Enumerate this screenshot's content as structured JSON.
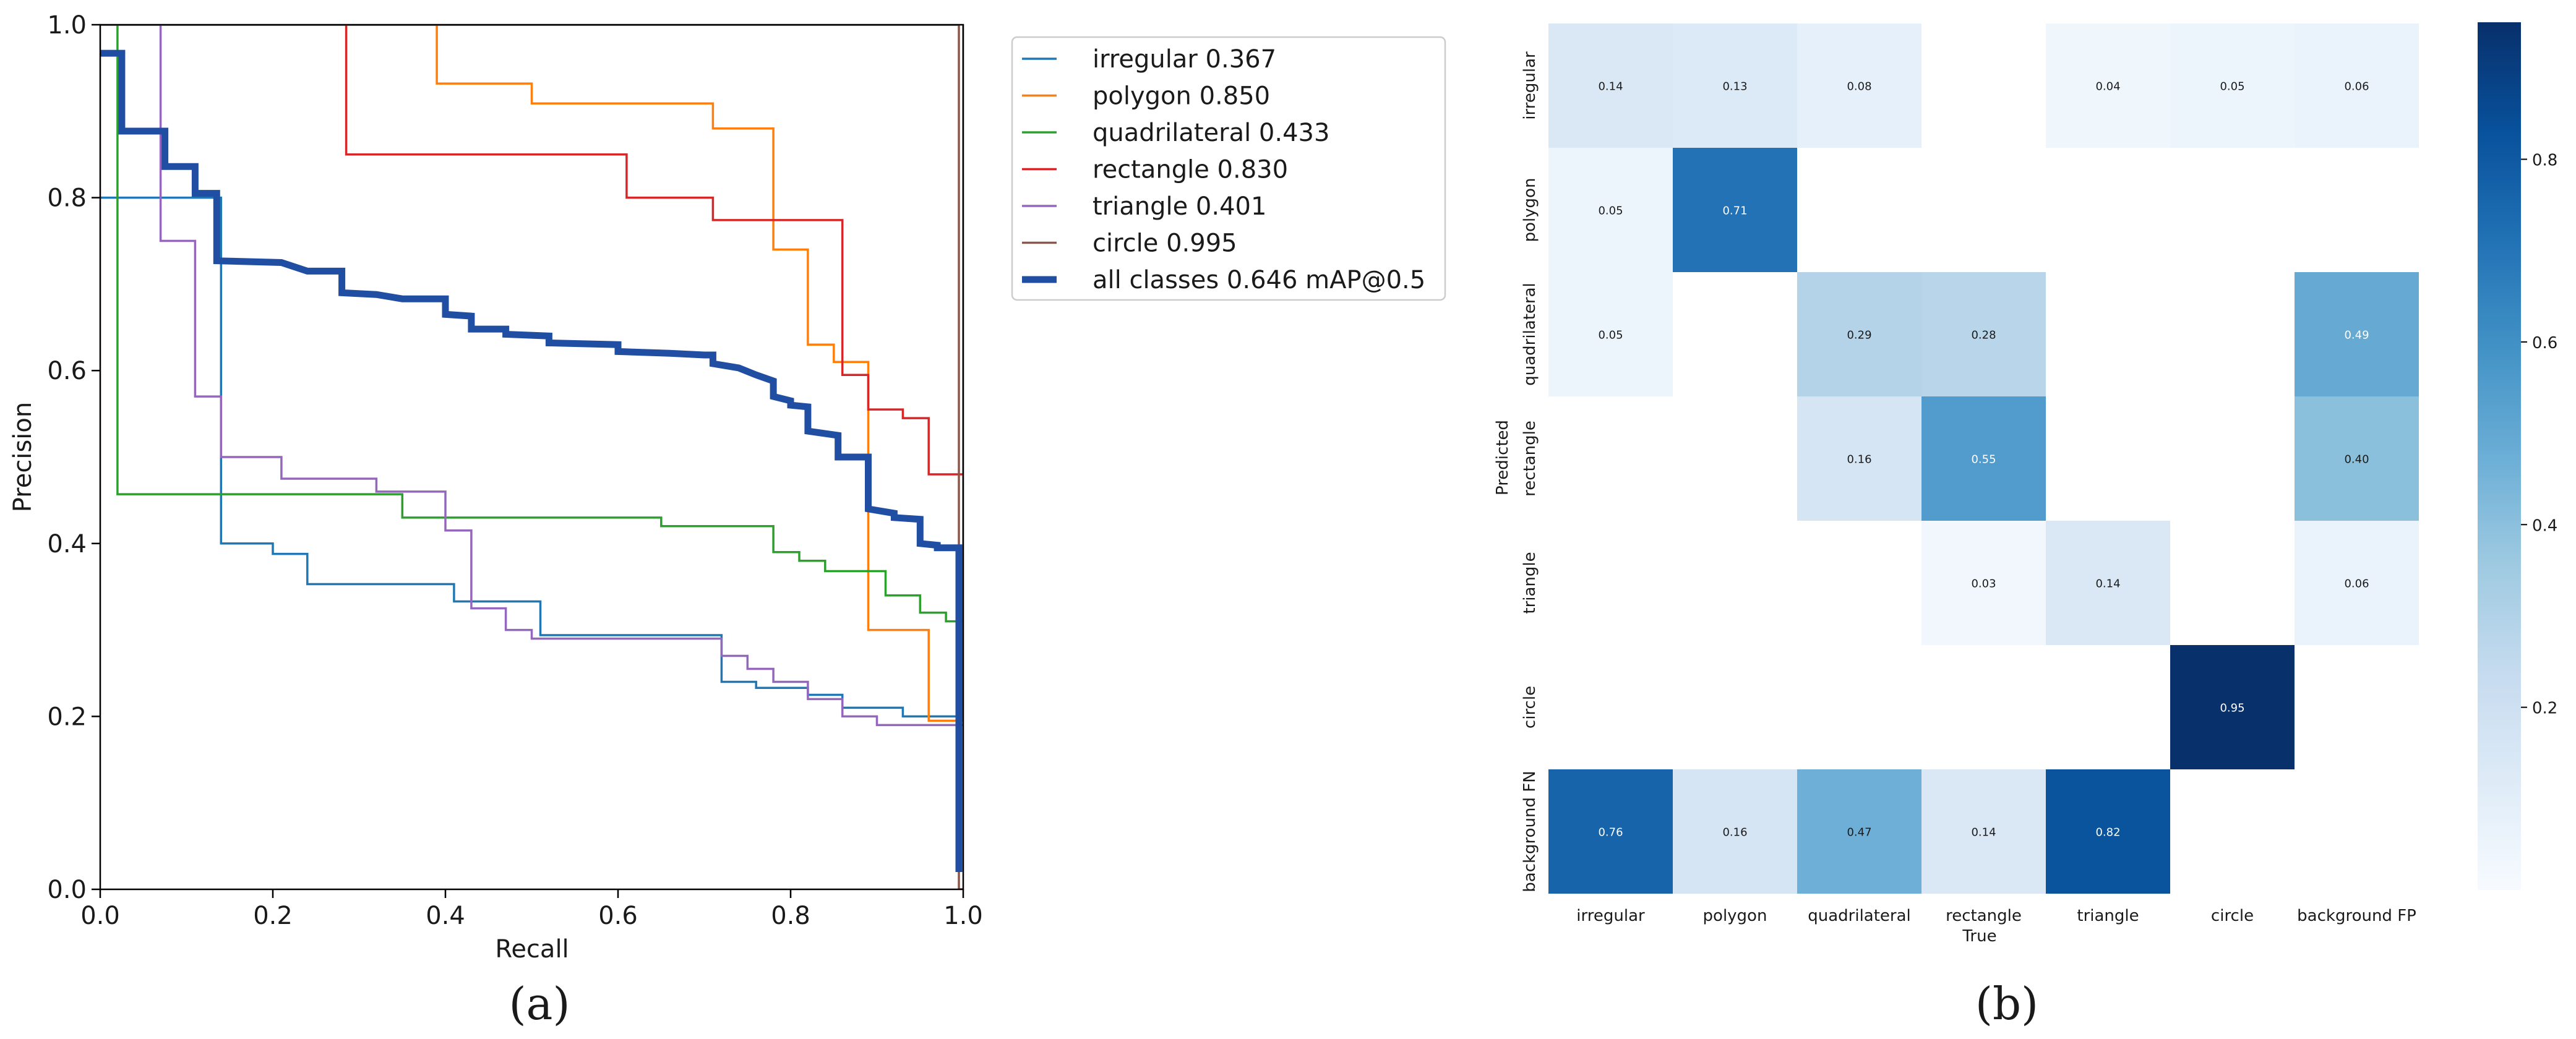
{
  "chart_data": [
    {
      "panel": "(a)",
      "type": "line",
      "xlabel": "Recall",
      "ylabel": "Precision",
      "xlim": [
        0,
        1
      ],
      "ylim": [
        0,
        1
      ],
      "xticks": [
        0.0,
        0.2,
        0.4,
        0.6,
        0.8,
        1.0
      ],
      "yticks": [
        0.0,
        0.2,
        0.4,
        0.6,
        0.8,
        1.0
      ],
      "tick_labels_x": [
        "0.0",
        "0.2",
        "0.4",
        "0.6",
        "0.8",
        "1.0"
      ],
      "tick_labels_y": [
        "0.0",
        "0.2",
        "0.4",
        "0.6",
        "0.8",
        "1.0"
      ],
      "legend_position": "outside-right",
      "series": [
        {
          "name": "irregular 0.367",
          "color": "#1f77b4",
          "width": "thin",
          "points": [
            [
              0,
              0.8
            ],
            [
              0.14,
              0.8
            ],
            [
              0.14,
              0.4
            ],
            [
              0.2,
              0.4
            ],
            [
              0.2,
              0.388
            ],
            [
              0.24,
              0.388
            ],
            [
              0.24,
              0.353
            ],
            [
              0.41,
              0.353
            ],
            [
              0.41,
              0.333
            ],
            [
              0.51,
              0.333
            ],
            [
              0.51,
              0.294
            ],
            [
              0.72,
              0.294
            ],
            [
              0.72,
              0.24
            ],
            [
              0.76,
              0.24
            ],
            [
              0.76,
              0.233
            ],
            [
              0.82,
              0.233
            ],
            [
              0.82,
              0.225
            ],
            [
              0.86,
              0.225
            ],
            [
              0.86,
              0.21
            ],
            [
              0.93,
              0.21
            ],
            [
              0.93,
              0.2
            ],
            [
              1.0,
              0.2
            ]
          ]
        },
        {
          "name": "polygon 0.850",
          "color": "#ff7f0e",
          "width": "thin",
          "points": [
            [
              0.39,
              1.0
            ],
            [
              0.39,
              0.932
            ],
            [
              0.5,
              0.932
            ],
            [
              0.5,
              0.909
            ],
            [
              0.71,
              0.909
            ],
            [
              0.71,
              0.88
            ],
            [
              0.78,
              0.88
            ],
            [
              0.78,
              0.74
            ],
            [
              0.82,
              0.74
            ],
            [
              0.82,
              0.63
            ],
            [
              0.85,
              0.63
            ],
            [
              0.85,
              0.61
            ],
            [
              0.89,
              0.61
            ],
            [
              0.89,
              0.3
            ],
            [
              0.96,
              0.3
            ],
            [
              0.96,
              0.195
            ],
            [
              1.0,
              0.195
            ],
            [
              1.0,
              1.0
            ]
          ]
        },
        {
          "name": "quadrilateral 0.433",
          "color": "#2ca02c",
          "width": "thin",
          "points": [
            [
              0.02,
              1.0
            ],
            [
              0.02,
              0.457
            ],
            [
              0.35,
              0.457
            ],
            [
              0.35,
              0.43
            ],
            [
              0.65,
              0.43
            ],
            [
              0.65,
              0.42
            ],
            [
              0.78,
              0.42
            ],
            [
              0.78,
              0.39
            ],
            [
              0.81,
              0.39
            ],
            [
              0.81,
              0.38
            ],
            [
              0.84,
              0.38
            ],
            [
              0.84,
              0.368
            ],
            [
              0.91,
              0.368
            ],
            [
              0.91,
              0.34
            ],
            [
              0.95,
              0.34
            ],
            [
              0.95,
              0.32
            ],
            [
              0.98,
              0.32
            ],
            [
              0.98,
              0.31
            ],
            [
              1.0,
              0.31
            ]
          ]
        },
        {
          "name": "rectangle 0.830",
          "color": "#d62728",
          "width": "thin",
          "points": [
            [
              0.285,
              1.0
            ],
            [
              0.285,
              0.85
            ],
            [
              0.61,
              0.85
            ],
            [
              0.61,
              0.8
            ],
            [
              0.71,
              0.8
            ],
            [
              0.71,
              0.774
            ],
            [
              0.86,
              0.774
            ],
            [
              0.86,
              0.595
            ],
            [
              0.89,
              0.595
            ],
            [
              0.89,
              0.555
            ],
            [
              0.93,
              0.555
            ],
            [
              0.93,
              0.545
            ],
            [
              0.96,
              0.545
            ],
            [
              0.96,
              0.48
            ],
            [
              1.0,
              0.48
            ]
          ]
        },
        {
          "name": "triangle 0.401",
          "color": "#9467bd",
          "width": "thin",
          "points": [
            [
              0.07,
              1.0
            ],
            [
              0.07,
              0.75
            ],
            [
              0.11,
              0.75
            ],
            [
              0.11,
              0.57
            ],
            [
              0.14,
              0.57
            ],
            [
              0.14,
              0.5
            ],
            [
              0.21,
              0.5
            ],
            [
              0.21,
              0.475
            ],
            [
              0.32,
              0.475
            ],
            [
              0.32,
              0.46
            ],
            [
              0.4,
              0.46
            ],
            [
              0.4,
              0.415
            ],
            [
              0.43,
              0.415
            ],
            [
              0.43,
              0.325
            ],
            [
              0.47,
              0.325
            ],
            [
              0.47,
              0.3
            ],
            [
              0.5,
              0.3
            ],
            [
              0.5,
              0.29
            ],
            [
              0.72,
              0.29
            ],
            [
              0.72,
              0.27
            ],
            [
              0.75,
              0.27
            ],
            [
              0.75,
              0.255
            ],
            [
              0.78,
              0.255
            ],
            [
              0.78,
              0.24
            ],
            [
              0.82,
              0.24
            ],
            [
              0.82,
              0.22
            ],
            [
              0.86,
              0.22
            ],
            [
              0.86,
              0.2
            ],
            [
              0.9,
              0.2
            ],
            [
              0.9,
              0.19
            ],
            [
              1.0,
              0.19
            ]
          ]
        },
        {
          "name": "circle 0.995",
          "color": "#8c564b",
          "width": "thin",
          "points": [
            [
              0,
              1.0
            ],
            [
              0.995,
              1.0
            ],
            [
              0.995,
              0.0
            ],
            [
              1.0,
              0.0
            ]
          ]
        },
        {
          "name": "all classes 0.646 mAP@0.5",
          "color": "#1f4ea3",
          "width": "thick",
          "points": [
            [
              0,
              0.967
            ],
            [
              0.025,
              0.967
            ],
            [
              0.025,
              0.877
            ],
            [
              0.075,
              0.877
            ],
            [
              0.075,
              0.836
            ],
            [
              0.11,
              0.836
            ],
            [
              0.11,
              0.805
            ],
            [
              0.135,
              0.805
            ],
            [
              0.135,
              0.727
            ],
            [
              0.21,
              0.725
            ],
            [
              0.24,
              0.715
            ],
            [
              0.28,
              0.715
            ],
            [
              0.28,
              0.69
            ],
            [
              0.32,
              0.688
            ],
            [
              0.35,
              0.683
            ],
            [
              0.4,
              0.683
            ],
            [
              0.4,
              0.665
            ],
            [
              0.43,
              0.663
            ],
            [
              0.43,
              0.648
            ],
            [
              0.47,
              0.648
            ],
            [
              0.47,
              0.642
            ],
            [
              0.52,
              0.64
            ],
            [
              0.52,
              0.632
            ],
            [
              0.6,
              0.63
            ],
            [
              0.6,
              0.622
            ],
            [
              0.66,
              0.62
            ],
            [
              0.7,
              0.618
            ],
            [
              0.71,
              0.618
            ],
            [
              0.71,
              0.608
            ],
            [
              0.74,
              0.603
            ],
            [
              0.76,
              0.595
            ],
            [
              0.78,
              0.588
            ],
            [
              0.78,
              0.57
            ],
            [
              0.8,
              0.565
            ],
            [
              0.8,
              0.56
            ],
            [
              0.82,
              0.558
            ],
            [
              0.82,
              0.53
            ],
            [
              0.855,
              0.525
            ],
            [
              0.855,
              0.5
            ],
            [
              0.89,
              0.5
            ],
            [
              0.89,
              0.44
            ],
            [
              0.92,
              0.435
            ],
            [
              0.92,
              0.43
            ],
            [
              0.95,
              0.428
            ],
            [
              0.95,
              0.4
            ],
            [
              0.97,
              0.398
            ],
            [
              0.97,
              0.395
            ],
            [
              0.995,
              0.395
            ],
            [
              0.995,
              0.02
            ]
          ]
        }
      ]
    },
    {
      "panel": "(b)",
      "type": "heatmap",
      "xlabel": "True",
      "ylabel": "Predicted",
      "x_categories": [
        "irregular",
        "polygon",
        "quadrilateral",
        "rectangle",
        "triangle",
        "circle",
        "background FP"
      ],
      "y_categories": [
        "irregular",
        "polygon",
        "quadrilateral",
        "rectangle",
        "triangle",
        "circle",
        "background FN"
      ],
      "values": [
        [
          0.14,
          0.13,
          0.08,
          null,
          0.04,
          0.05,
          0.06
        ],
        [
          0.05,
          0.71,
          null,
          null,
          null,
          null,
          null
        ],
        [
          0.05,
          null,
          0.29,
          0.28,
          null,
          null,
          0.49
        ],
        [
          null,
          null,
          0.16,
          0.55,
          null,
          null,
          0.4
        ],
        [
          null,
          null,
          null,
          0.03,
          0.14,
          null,
          0.06
        ],
        [
          null,
          null,
          null,
          null,
          null,
          0.95,
          null
        ],
        [
          0.76,
          0.16,
          0.47,
          0.14,
          0.82,
          null,
          null
        ]
      ],
      "colormap": "Blues",
      "vmin": 0,
      "vmax": 0.95,
      "colorbar_ticks": [
        0.2,
        0.4,
        0.6,
        0.8
      ],
      "colorbar_tick_labels": [
        "0.2",
        "0.4",
        "0.6",
        "0.8"
      ]
    }
  ],
  "captions": {
    "a": "(a)",
    "b": "(b)"
  }
}
